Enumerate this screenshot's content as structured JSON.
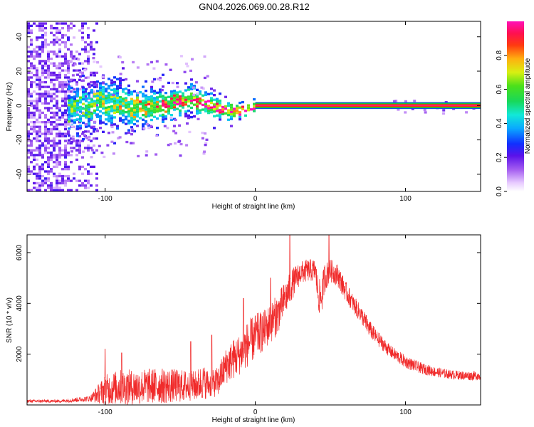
{
  "title": "GN04.2026.069.00.28.R12",
  "colors": {
    "snr_line": "#f02a2a",
    "band_core": "#ff2d10",
    "band_edge": "#18c23a"
  },
  "chart_data": [
    {
      "type": "heatmap",
      "name": "spectrogram",
      "xlabel": "Height of straight line (km)",
      "ylabel": "Frequency (Hz)",
      "xlim": [
        -152,
        150
      ],
      "ylim": [
        -50,
        49
      ],
      "x_ticks": [
        -100,
        0,
        100
      ],
      "x_tick_labels": [
        "-100",
        "0",
        "100"
      ],
      "y_ticks": [
        -40,
        -20,
        0,
        20,
        40
      ],
      "y_tick_labels": [
        "-40",
        "-20",
        "0",
        "20",
        "40"
      ],
      "features": {
        "noise_region_x": [
          -152,
          -106
        ],
        "scatter_region_x": [
          -125,
          0
        ],
        "steady_band_x": [
          0,
          150
        ],
        "band_center_freq": 0,
        "band_halfwidth_freq": 2
      },
      "colorbar": {
        "label": "Normalized spectral amplitude",
        "range": [
          0,
          1
        ],
        "ticks": [
          0.0,
          0.2,
          0.4,
          0.6,
          0.8
        ],
        "tick_labels": [
          "0.0",
          "0.2",
          "0.4",
          "0.6",
          "0.8"
        ],
        "colormap": "rainbow"
      }
    },
    {
      "type": "line",
      "name": "snr",
      "xlabel": "Height of straight line (km)",
      "ylabel": "SNR (10 * v/v)",
      "xlim": [
        -152,
        150
      ],
      "ylim": [
        0,
        6700
      ],
      "x_ticks": [
        -100,
        0,
        100
      ],
      "x_tick_labels": [
        "-100",
        "0",
        "100"
      ],
      "y_ticks": [
        2000,
        4000,
        6000
      ],
      "y_tick_labels": [
        "2000",
        "4000",
        "6000"
      ],
      "envelope_x": [
        -152,
        -130,
        -110,
        -100,
        -90,
        -80,
        -70,
        -60,
        -50,
        -40,
        -35,
        -30,
        -25,
        -20,
        -15,
        -10,
        -5,
        0,
        5,
        10,
        15,
        20,
        25,
        30,
        35,
        40,
        42,
        44,
        46,
        50,
        55,
        60,
        65,
        70,
        75,
        80,
        90,
        100,
        110,
        120,
        130,
        140,
        150
      ],
      "envelope_y": [
        150,
        150,
        250,
        600,
        700,
        700,
        750,
        750,
        750,
        750,
        900,
        800,
        900,
        1500,
        1800,
        2000,
        2400,
        2700,
        2900,
        3200,
        3600,
        4200,
        4800,
        5200,
        5300,
        5300,
        4300,
        4200,
        5000,
        5300,
        5100,
        4500,
        4000,
        3600,
        3100,
        2700,
        2100,
        1700,
        1450,
        1300,
        1200,
        1150,
        1150
      ],
      "noise_amplitude": [
        60,
        60,
        120,
        600,
        700,
        700,
        700,
        700,
        650,
        600,
        700,
        500,
        600,
        700,
        800,
        800,
        900,
        900,
        800,
        800,
        800,
        700,
        600,
        450,
        450,
        450,
        700,
        700,
        600,
        450,
        450,
        400,
        350,
        350,
        350,
        300,
        250,
        250,
        220,
        200,
        180,
        180,
        180
      ],
      "spikes": [
        {
          "x": -100,
          "y": 2200
        },
        {
          "x": -89,
          "y": 2050
        },
        {
          "x": -43,
          "y": 2500
        },
        {
          "x": -29,
          "y": 2750
        },
        {
          "x": -8,
          "y": 4200
        },
        {
          "x": 10,
          "y": 5000
        },
        {
          "x": 23,
          "y": 6700
        },
        {
          "x": 49,
          "y": 6700
        }
      ]
    }
  ]
}
